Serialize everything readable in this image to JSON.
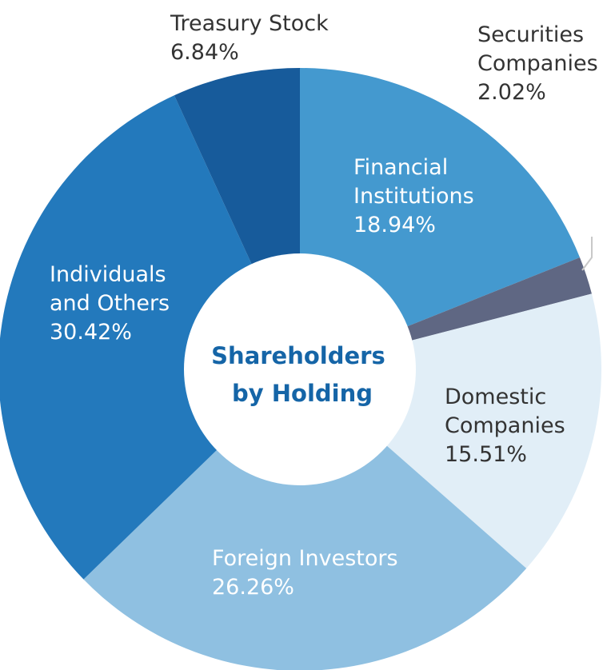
{
  "chart_data": {
    "type": "pie",
    "variant": "donut",
    "center_title": [
      "Shareholders",
      "by Holding"
    ],
    "start": "12 o'clock",
    "direction": "clockwise",
    "slices": [
      {
        "label": [
          "Financial",
          "Institutions"
        ],
        "value": 18.94,
        "value_text": "18.94%",
        "color": "#4499cf",
        "text_color": "#ffffff"
      },
      {
        "label": [
          "Securities",
          "Companies"
        ],
        "value": 2.02,
        "value_text": "2.02%",
        "color": "#5f6783",
        "text_color": "#333333"
      },
      {
        "label": [
          "Domestic",
          "Companies"
        ],
        "value": 15.51,
        "value_text": "15.51%",
        "color": "#e1eef7",
        "text_color": "#333333"
      },
      {
        "label": [
          "Foreign Investors"
        ],
        "value": 26.26,
        "value_text": "26.26%",
        "color": "#8fc0e1",
        "text_color": "#ffffff"
      },
      {
        "label": [
          "Individuals",
          "and Others"
        ],
        "value": 30.42,
        "value_text": "30.42%",
        "color": "#2379bc",
        "text_color": "#ffffff"
      },
      {
        "label": [
          "Treasury Stock"
        ],
        "value": 6.84,
        "value_text": "6.84%",
        "color": "#175b9b",
        "text_color": "#333333"
      }
    ]
  }
}
